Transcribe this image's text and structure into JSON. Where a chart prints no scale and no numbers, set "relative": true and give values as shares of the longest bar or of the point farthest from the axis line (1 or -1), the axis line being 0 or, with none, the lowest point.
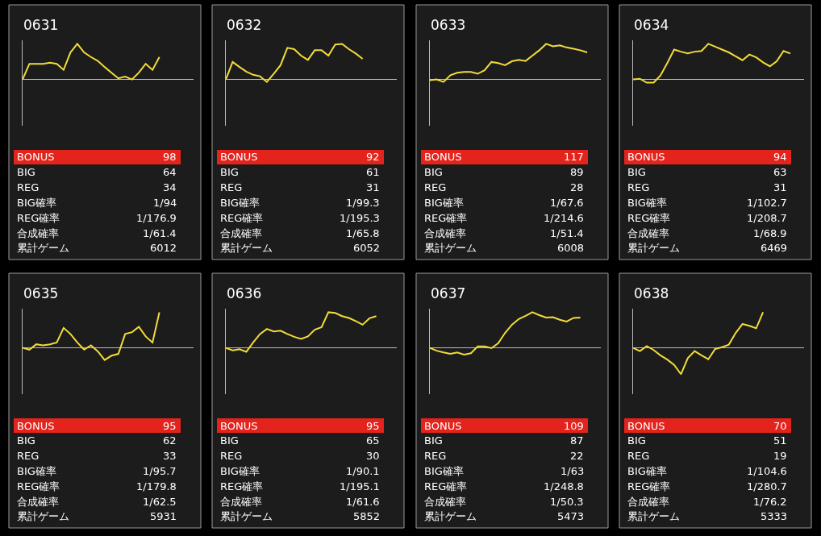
{
  "chart_data": [
    {
      "type": "line",
      "title": "0631",
      "relative": true,
      "tick_labels": false,
      "categories": [
        null,
        null,
        null,
        null,
        null,
        null,
        null,
        null,
        null,
        null,
        null,
        null,
        null,
        null,
        null,
        null,
        null,
        null,
        null,
        null,
        null,
        null,
        null,
        null,
        null,
        null
      ],
      "series": [
        {
          "color": "#f2dc3a",
          "values": [
            0,
            0.44,
            0.44,
            0.44,
            0.47,
            0.44,
            0.27,
            0.76,
            1,
            0.76,
            0.63,
            0.52,
            0.35,
            0.19,
            0.03,
            0.08,
            0,
            0.19,
            0.44,
            0.27,
            0.63,
            null,
            null,
            null,
            null,
            null
          ]
        }
      ],
      "annotations": [
        "BONUS",
        "98",
        "BIG",
        "64",
        "REG",
        "34",
        "BIG確率",
        "1/94",
        "REG確率",
        "1/176.9",
        "合成確率",
        "1/61.4",
        "累計ゲーム",
        "6012"
      ]
    },
    {
      "type": "line",
      "title": "0632",
      "relative": true,
      "tick_labels": false,
      "categories": [
        null,
        null,
        null,
        null,
        null,
        null,
        null,
        null,
        null,
        null,
        null,
        null,
        null,
        null,
        null,
        null,
        null,
        null,
        null,
        null,
        null,
        null,
        null,
        null,
        null,
        null
      ],
      "series": [
        {
          "color": "#f2dc3a",
          "values": [
            0,
            0.49,
            0.35,
            0.22,
            0.13,
            0.09,
            -0.07,
            0.16,
            0.4,
            0.89,
            0.85,
            0.67,
            0.55,
            0.82,
            0.82,
            0.67,
            0.98,
            1,
            0.85,
            0.73,
            0.58,
            null,
            null,
            null,
            null,
            null
          ]
        }
      ],
      "annotations": [
        "BONUS",
        "92",
        "BIG",
        "61",
        "REG",
        "31",
        "BIG確率",
        "1/99.3",
        "REG確率",
        "1/195.3",
        "合成確率",
        "1/65.8",
        "累計ゲーム",
        "6052"
      ]
    },
    {
      "type": "line",
      "title": "0633",
      "relative": true,
      "tick_labels": false,
      "categories": [
        null,
        null,
        null,
        null,
        null,
        null,
        null,
        null,
        null,
        null,
        null,
        null,
        null,
        null,
        null,
        null,
        null,
        null,
        null,
        null,
        null,
        null,
        null,
        null,
        null,
        null
      ],
      "series": [
        {
          "color": "#f2dc3a",
          "values": [
            -0.02,
            0,
            -0.07,
            0.12,
            0.19,
            0.21,
            0.21,
            0.16,
            0.26,
            0.49,
            0.46,
            0.4,
            0.51,
            0.55,
            0.52,
            0.67,
            0.82,
            1,
            0.93,
            0.96,
            0.9,
            0.86,
            0.82,
            0.76,
            null,
            null
          ]
        }
      ],
      "annotations": [
        "BONUS",
        "117",
        "BIG",
        "89",
        "REG",
        "28",
        "BIG確率",
        "1/67.6",
        "REG確率",
        "1/214.6",
        "合成確率",
        "1/51.4",
        "累計ゲーム",
        "6008"
      ]
    },
    {
      "type": "line",
      "title": "0634",
      "relative": true,
      "tick_labels": false,
      "categories": [
        null,
        null,
        null,
        null,
        null,
        null,
        null,
        null,
        null,
        null,
        null,
        null,
        null,
        null,
        null,
        null,
        null,
        null,
        null,
        null,
        null,
        null,
        null,
        null,
        null,
        null
      ],
      "series": [
        {
          "color": "#f2dc3a",
          "values": [
            0,
            0.02,
            -0.09,
            -0.09,
            0.11,
            0.46,
            0.84,
            0.78,
            0.73,
            0.78,
            0.8,
            1,
            0.92,
            0.84,
            0.76,
            0.65,
            0.54,
            0.7,
            0.62,
            0.48,
            0.37,
            0.51,
            0.8,
            0.73,
            null,
            null
          ]
        }
      ],
      "annotations": [
        "BONUS",
        "94",
        "BIG",
        "63",
        "REG",
        "31",
        "BIG確率",
        "1/102.7",
        "REG確率",
        "1/208.7",
        "合成確率",
        "1/68.9",
        "累計ゲーム",
        "6469"
      ]
    },
    {
      "type": "line",
      "title": "0635",
      "relative": true,
      "tick_labels": false,
      "categories": [
        null,
        null,
        null,
        null,
        null,
        null,
        null,
        null,
        null,
        null,
        null,
        null,
        null,
        null,
        null,
        null,
        null,
        null,
        null,
        null,
        null,
        null,
        null,
        null,
        null,
        null
      ],
      "series": [
        {
          "color": "#f2dc3a",
          "values": [
            0,
            -0.05,
            0.1,
            0.07,
            0.1,
            0.15,
            0.56,
            0.39,
            0.15,
            -0.05,
            0.07,
            -0.1,
            -0.34,
            -0.22,
            -0.17,
            0.39,
            0.44,
            0.59,
            0.32,
            0.15,
            1,
            null,
            null,
            null,
            null,
            null
          ]
        }
      ],
      "annotations": [
        "BONUS",
        "95",
        "BIG",
        "62",
        "REG",
        "33",
        "BIG確率",
        "1/95.7",
        "REG確率",
        "1/179.8",
        "合成確率",
        "1/62.5",
        "累計ゲーム",
        "5931"
      ]
    },
    {
      "type": "line",
      "title": "0636",
      "relative": true,
      "tick_labels": false,
      "categories": [
        null,
        null,
        null,
        null,
        null,
        null,
        null,
        null,
        null,
        null,
        null,
        null,
        null,
        null,
        null,
        null,
        null,
        null,
        null,
        null,
        null,
        null,
        null,
        null,
        null,
        null
      ],
      "series": [
        {
          "color": "#f2dc3a",
          "values": [
            0,
            -0.07,
            -0.04,
            -0.11,
            0.15,
            0.39,
            0.53,
            0.46,
            0.48,
            0.39,
            0.31,
            0.25,
            0.32,
            0.51,
            0.58,
            1,
            0.98,
            0.89,
            0.84,
            0.75,
            0.65,
            0.83,
            0.89,
            null,
            null,
            null
          ]
        }
      ],
      "annotations": [
        "BONUS",
        "95",
        "BIG",
        "65",
        "REG",
        "30",
        "BIG確率",
        "1/90.1",
        "REG確率",
        "1/195.1",
        "合成確率",
        "1/61.6",
        "累計ゲーム",
        "5852"
      ]
    },
    {
      "type": "line",
      "title": "0637",
      "relative": true,
      "tick_labels": false,
      "categories": [
        null,
        null,
        null,
        null,
        null,
        null,
        null,
        null,
        null,
        null,
        null,
        null,
        null,
        null,
        null,
        null,
        null,
        null,
        null,
        null,
        null,
        null,
        null,
        null,
        null,
        null
      ],
      "series": [
        {
          "color": "#f2dc3a",
          "values": [
            0,
            -0.08,
            -0.13,
            -0.17,
            -0.13,
            -0.19,
            -0.15,
            0.04,
            0.04,
            -0.01,
            0.13,
            0.42,
            0.65,
            0.81,
            0.9,
            1,
            0.92,
            0.85,
            0.86,
            0.79,
            0.74,
            0.84,
            0.85,
            null,
            null,
            null
          ]
        }
      ],
      "annotations": [
        "BONUS",
        "109",
        "BIG",
        "87",
        "REG",
        "22",
        "BIG確率",
        "1/63",
        "REG確率",
        "1/248.8",
        "合成確率",
        "1/50.3",
        "累計ゲーム",
        "5473"
      ]
    },
    {
      "type": "line",
      "title": "0638",
      "relative": true,
      "tick_labels": false,
      "categories": [
        null,
        null,
        null,
        null,
        null,
        null,
        null,
        null,
        null,
        null,
        null,
        null,
        null,
        null,
        null,
        null,
        null,
        null,
        null,
        null,
        null,
        null,
        null,
        null,
        null,
        null
      ],
      "series": [
        {
          "color": "#f2dc3a",
          "values": [
            0,
            -0.09,
            0.05,
            -0.06,
            -0.21,
            -0.33,
            -0.48,
            -0.74,
            -0.29,
            -0.09,
            -0.21,
            -0.32,
            -0.03,
            0.02,
            0.09,
            0.42,
            0.67,
            0.62,
            0.55,
            1,
            null,
            null,
            null,
            null,
            null,
            null
          ]
        }
      ],
      "annotations": [
        "BONUS",
        "70",
        "BIG",
        "51",
        "REG",
        "19",
        "BIG確率",
        "1/104.6",
        "REG確率",
        "1/280.7",
        "合成確率",
        "1/76.2",
        "累計ゲーム",
        "5333"
      ]
    }
  ]
}
